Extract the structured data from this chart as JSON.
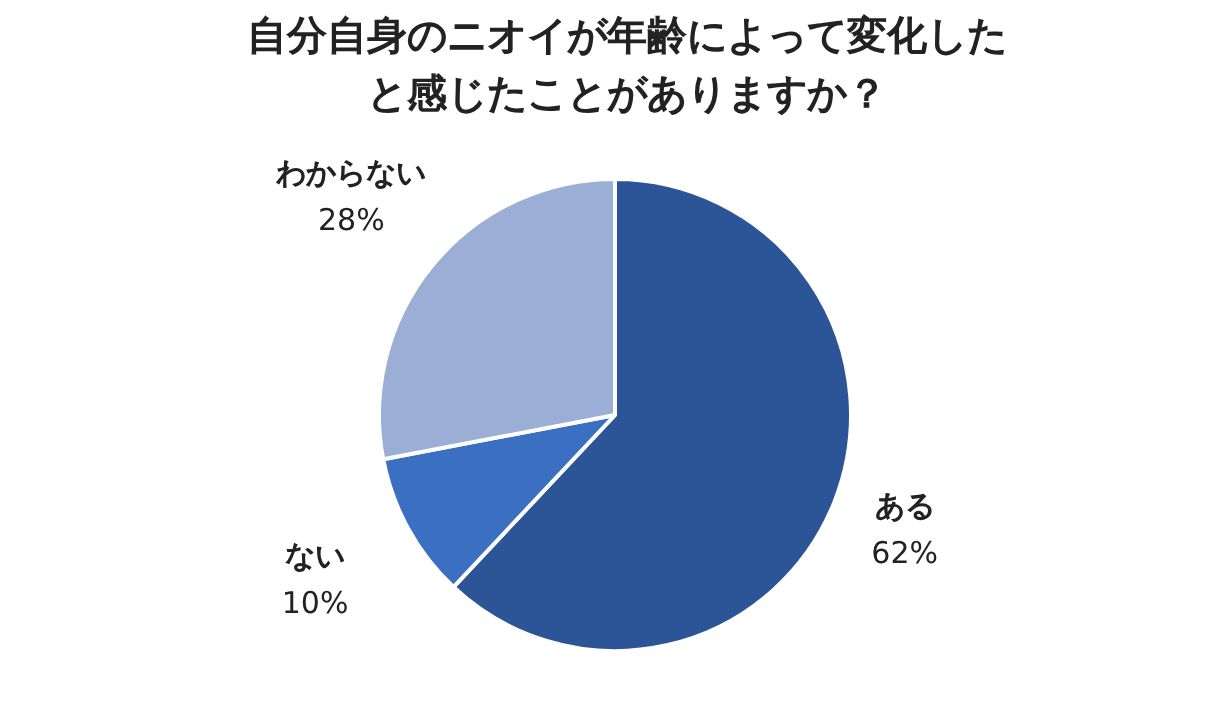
{
  "chart_data": {
    "type": "pie",
    "title": "自分自身のニオイが年齢によって変化したと感じたことがありますか？",
    "categories": [
      "ある",
      "ない",
      "わからない"
    ],
    "values": [
      62,
      10,
      28
    ],
    "value_labels": [
      "62%",
      "10%",
      "28%"
    ],
    "colors": [
      "#2b5596",
      "#3a6fc2",
      "#9aaed6"
    ]
  }
}
